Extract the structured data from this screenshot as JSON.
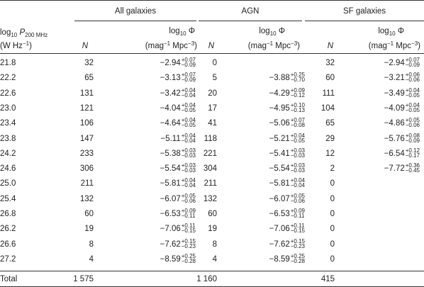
{
  "groups": {
    "all": "All galaxies",
    "agn": "AGN",
    "sf": "SF galaxies"
  },
  "subheaders": {
    "col1_line1": "log",
    "col1_sub": "10",
    "col1_var": "P",
    "col1_varsub": "200 MHz",
    "col1_line2_a": "(W Hz",
    "col1_line2_sup": "−1",
    "col1_line2_b": ")",
    "n": "N",
    "phi_log": "log",
    "phi_sub": "10",
    "phi_sym": "Φ",
    "phi_unit_a": "(mag",
    "phi_unit_sup1": "−1",
    "phi_unit_b": " Mpc",
    "phi_unit_sup2": "−3",
    "phi_unit_c": ")"
  },
  "rows": [
    {
      "p": "21.8",
      "n_all": "32",
      "phi_all": "−2.94",
      "ph_all": "+0.07",
      "mh_all": "−0.09",
      "n_agn": "0",
      "phi_agn": "",
      "ph_agn": "",
      "mh_agn": "",
      "n_sf": "32",
      "phi_sf": "−2.94",
      "ph_sf": "+0.07",
      "mh_sf": "−0.09"
    },
    {
      "p": "22.2",
      "n_all": "65",
      "phi_all": "−3.13",
      "ph_all": "+0.07",
      "mh_all": "−0.09",
      "n_agn": "5",
      "phi_agn": "−3.88",
      "ph_agn": "+0.25",
      "mh_agn": "−0.70",
      "n_sf": "60",
      "phi_sf": "−3.21",
      "ph_sf": "+0.06",
      "mh_sf": "−0.06"
    },
    {
      "p": "22.6",
      "n_all": "131",
      "phi_all": "−3.42",
      "ph_all": "+0.04",
      "mh_all": "−0.04",
      "n_agn": "20",
      "phi_agn": "−4.29",
      "ph_agn": "+0.09",
      "mh_agn": "−0.12",
      "n_sf": "111",
      "phi_sf": "−3.49",
      "ph_sf": "+0.04",
      "mh_sf": "−0.05"
    },
    {
      "p": "23.0",
      "n_all": "121",
      "phi_all": "−4.04",
      "ph_all": "+0.04",
      "mh_all": "−0.05",
      "n_agn": "17",
      "phi_agn": "−4.95",
      "ph_agn": "+0.10",
      "mh_agn": "−0.13",
      "n_sf": "104",
      "phi_sf": "−4.09",
      "ph_sf": "+0.04",
      "mh_sf": "−0.05"
    },
    {
      "p": "23.4",
      "n_all": "106",
      "phi_all": "−4.64",
      "ph_all": "+0.04",
      "mh_all": "−0.05",
      "n_agn": "41",
      "phi_agn": "−5.06",
      "ph_agn": "+0.07",
      "mh_agn": "−0.08",
      "n_sf": "65",
      "phi_sf": "−4.86",
      "ph_sf": "+0.05",
      "mh_sf": "−0.06"
    },
    {
      "p": "23.8",
      "n_all": "147",
      "phi_all": "−5.11",
      "ph_all": "+0.04",
      "mh_all": "−0.04",
      "n_agn": "118",
      "phi_agn": "−5.21",
      "ph_agn": "+0.04",
      "mh_agn": "−0.05",
      "n_sf": "29",
      "phi_sf": "−5.76",
      "ph_sf": "+0.08",
      "mh_sf": "−0.09"
    },
    {
      "p": "24.2",
      "n_all": "233",
      "phi_all": "−5.38",
      "ph_all": "+0.03",
      "mh_all": "−0.03",
      "n_agn": "221",
      "phi_agn": "−5.41",
      "ph_agn": "+0.03",
      "mh_agn": "−0.03",
      "n_sf": "12",
      "phi_sf": "−6.54",
      "ph_sf": "+0.12",
      "mh_sf": "−0.17"
    },
    {
      "p": "24.6",
      "n_all": "306",
      "phi_all": "−5.54",
      "ph_all": "+0.03",
      "mh_all": "−0.03",
      "n_agn": "304",
      "phi_agn": "−5.54",
      "ph_agn": "+0.03",
      "mh_agn": "−0.03",
      "n_sf": "2",
      "phi_sf": "−7.72",
      "ph_sf": "+0.36",
      "mh_sf": "−0.45"
    },
    {
      "p": "25.0",
      "n_all": "211",
      "phi_all": "−5.81",
      "ph_all": "+0.04",
      "mh_all": "−0.04",
      "n_agn": "211",
      "phi_agn": "−5.81",
      "ph_agn": "+0.04",
      "mh_agn": "−0.04",
      "n_sf": "0",
      "phi_sf": "",
      "ph_sf": "",
      "mh_sf": ""
    },
    {
      "p": "25.4",
      "n_all": "132",
      "phi_all": "−6.07",
      "ph_all": "+0.05",
      "mh_all": "−0.06",
      "n_agn": "132",
      "phi_agn": "−6.07",
      "ph_agn": "+0.05",
      "mh_agn": "−0.06",
      "n_sf": "0",
      "phi_sf": "",
      "ph_sf": "",
      "mh_sf": ""
    },
    {
      "p": "26.8",
      "n_all": "60",
      "phi_all": "−6.53",
      "ph_all": "+0.09",
      "mh_all": "−0.11",
      "n_agn": "60",
      "phi_agn": "−6.53",
      "ph_agn": "+0.09",
      "mh_agn": "−0.11",
      "n_sf": "0",
      "phi_sf": "",
      "ph_sf": "",
      "mh_sf": ""
    },
    {
      "p": "26.2",
      "n_all": "19",
      "phi_all": "−7.06",
      "ph_all": "+0.11",
      "mh_all": "−0.15",
      "n_agn": "19",
      "phi_agn": "−7.06",
      "ph_agn": "+0.11",
      "mh_agn": "−0.15",
      "n_sf": "0",
      "phi_sf": "",
      "ph_sf": "",
      "mh_sf": ""
    },
    {
      "p": "26.6",
      "n_all": "8",
      "phi_all": "−7.62",
      "ph_all": "+0.15",
      "mh_all": "−0.23",
      "n_agn": "8",
      "phi_agn": "−7.62",
      "ph_agn": "+0.15",
      "mh_agn": "−0.23",
      "n_sf": "0",
      "phi_sf": "",
      "ph_sf": "",
      "mh_sf": ""
    },
    {
      "p": "27.2",
      "n_all": "4",
      "phi_all": "−8.59",
      "ph_all": "+0.25",
      "mh_all": "−0.28",
      "n_agn": "4",
      "phi_agn": "−8.59",
      "ph_agn": "+0.25",
      "mh_agn": "−0.28",
      "n_sf": "0",
      "phi_sf": "",
      "ph_sf": "",
      "mh_sf": ""
    }
  ],
  "total": {
    "label": "Total",
    "n_all": "1 575",
    "n_agn": "1 160",
    "n_sf": "415"
  }
}
